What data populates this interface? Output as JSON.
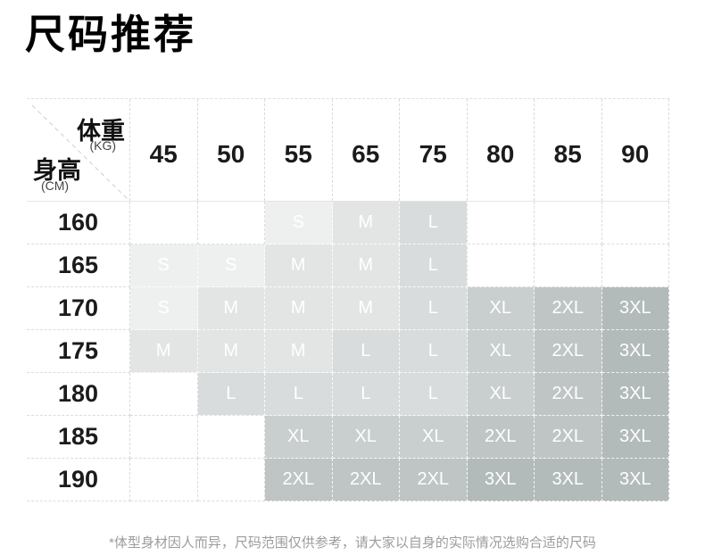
{
  "title": "尺码推荐",
  "table": {
    "corner": {
      "weight_label": "体重",
      "weight_unit": "(KG)",
      "height_label": "身高",
      "height_unit": "(CM)"
    },
    "weights": [
      "45",
      "50",
      "55",
      "65",
      "75",
      "80",
      "85",
      "90"
    ],
    "rows": [
      {
        "height": "160",
        "cells": [
          "",
          "",
          "S",
          "M",
          "L",
          "",
          "",
          ""
        ]
      },
      {
        "height": "165",
        "cells": [
          "S",
          "S",
          "M",
          "M",
          "L",
          "",
          "",
          ""
        ]
      },
      {
        "height": "170",
        "cells": [
          "S",
          "M",
          "M",
          "M",
          "L",
          "XL",
          "2XL",
          "3XL"
        ]
      },
      {
        "height": "175",
        "cells": [
          "M",
          "M",
          "M",
          "L",
          "L",
          "XL",
          "2XL",
          "3XL"
        ]
      },
      {
        "height": "180",
        "cells": [
          "",
          "L",
          "L",
          "L",
          "L",
          "XL",
          "2XL",
          "3XL"
        ]
      },
      {
        "height": "185",
        "cells": [
          "",
          "",
          "XL",
          "XL",
          "XL",
          "2XL",
          "2XL",
          "3XL"
        ]
      },
      {
        "height": "190",
        "cells": [
          "",
          "",
          "2XL",
          "2XL",
          "2XL",
          "3XL",
          "3XL",
          "3XL"
        ]
      }
    ],
    "size_colors": {
      "S": "#eef0f0",
      "M": "#e3e5e5",
      "L": "#d9dcdc",
      "XL": "#c9cece",
      "2XL": "#bfc5c5",
      "3XL": "#b3baba"
    },
    "cell_text_color": "#ffffff",
    "grid_line_color": "#dcdcdc"
  },
  "footnote": "*体型身材因人而异，尺码范围仅供参考，请大家以自身的实际情况选购合适的尺码",
  "chart_data": {
    "type": "table",
    "title": "尺码推荐",
    "columns_label": "体重 (KG)",
    "rows_label": "身高 (CM)",
    "columns": [
      45,
      50,
      55,
      65,
      75,
      80,
      85,
      90
    ],
    "rows": [
      160,
      165,
      170,
      175,
      180,
      185,
      190
    ],
    "values": [
      [
        "",
        "",
        "S",
        "M",
        "L",
        "",
        "",
        ""
      ],
      [
        "S",
        "S",
        "M",
        "M",
        "L",
        "",
        "",
        ""
      ],
      [
        "S",
        "M",
        "M",
        "M",
        "L",
        "XL",
        "2XL",
        "3XL"
      ],
      [
        "M",
        "M",
        "M",
        "L",
        "L",
        "XL",
        "2XL",
        "3XL"
      ],
      [
        "",
        "L",
        "L",
        "L",
        "L",
        "XL",
        "2XL",
        "3XL"
      ],
      [
        "",
        "",
        "XL",
        "XL",
        "XL",
        "2XL",
        "2XL",
        "3XL"
      ],
      [
        "",
        "",
        "2XL",
        "2XL",
        "2XL",
        "3XL",
        "3XL",
        "3XL"
      ]
    ],
    "note": "*体型身材因人而异，尺码范围仅供参考，请大家以自身的实际情况选购合适的尺码"
  }
}
